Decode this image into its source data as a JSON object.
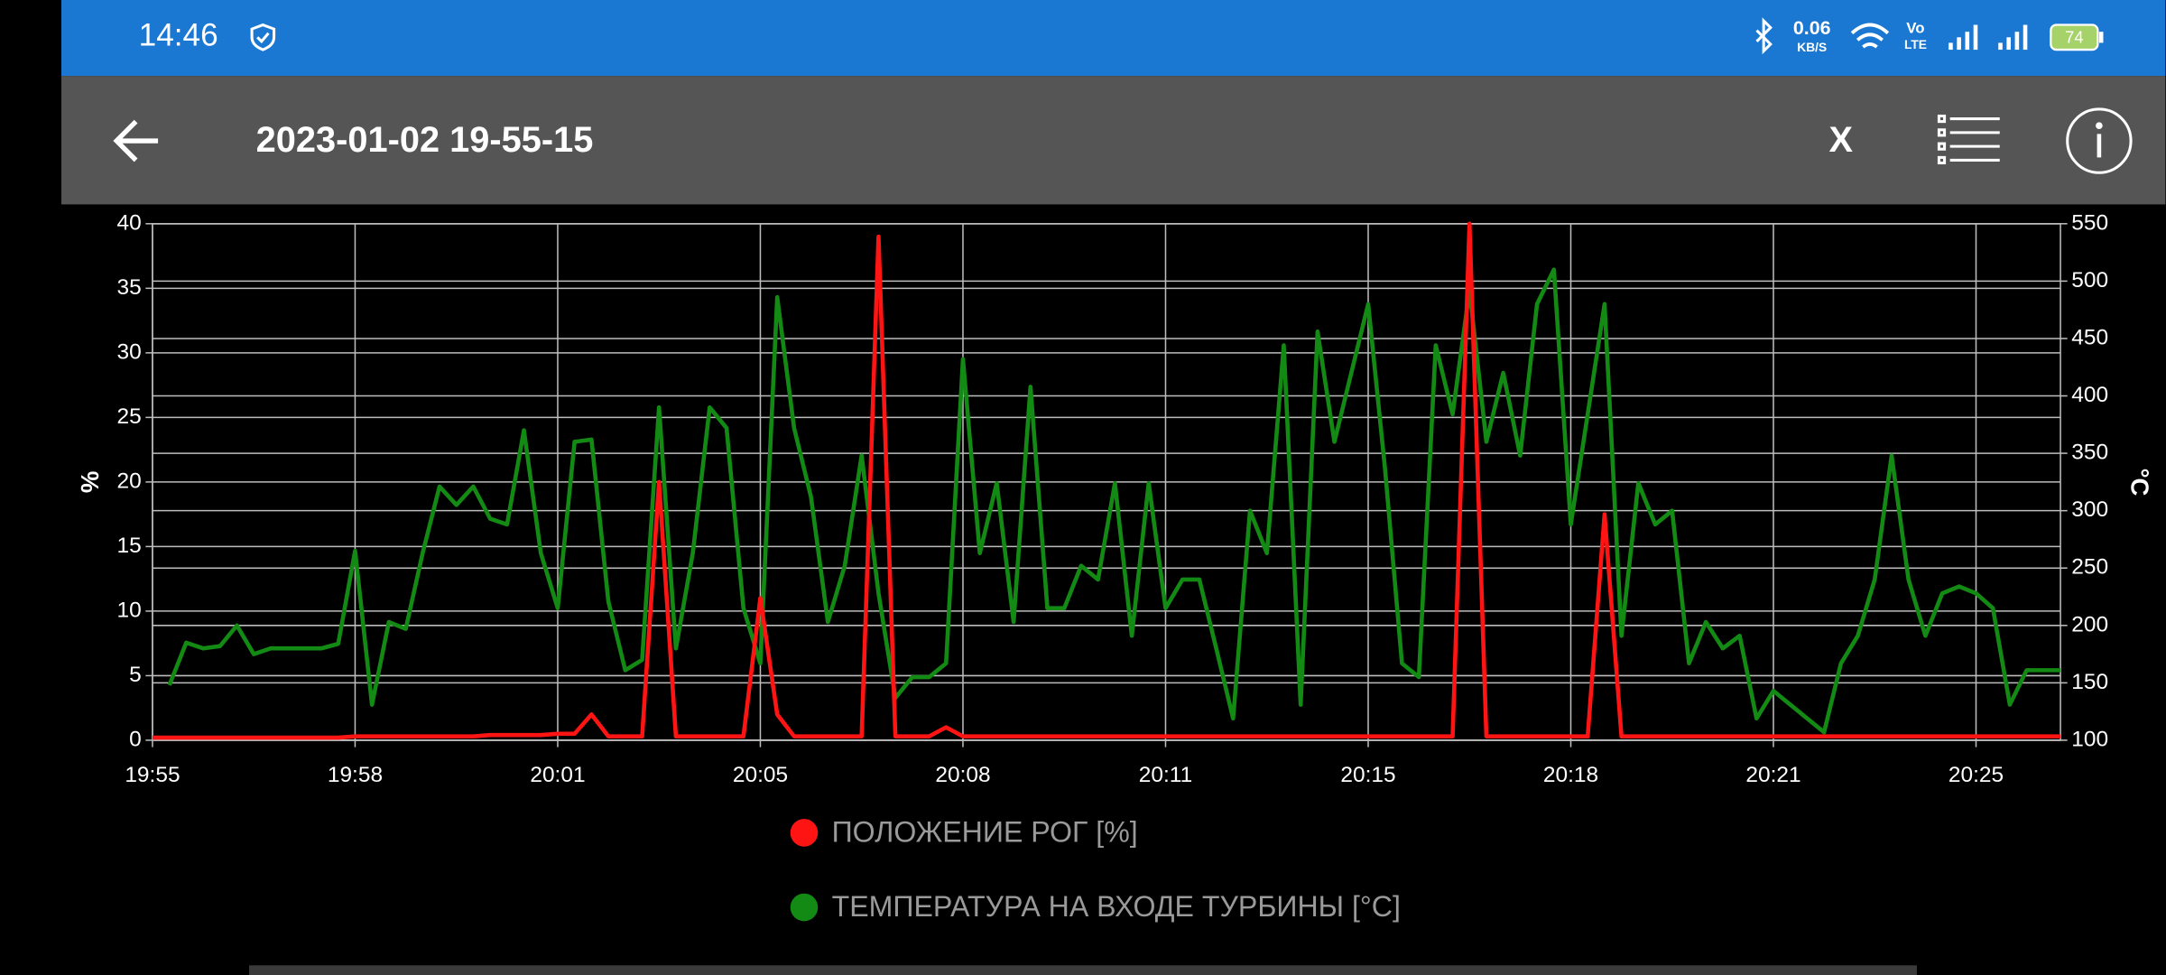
{
  "status_bar": {
    "time": "14:46",
    "net_speed": "0.06",
    "net_unit": "KB/S",
    "volte_top": "Vo",
    "volte_bottom": "LTE",
    "battery": "74"
  },
  "toolbar": {
    "title": "2023-01-02 19-55-15",
    "close": "X"
  },
  "chart_data": {
    "type": "line",
    "ylabel": "%",
    "y2label": "°C",
    "categories": [
      "19:55",
      null,
      null,
      null,
      null,
      null,
      null,
      null,
      null,
      null,
      null,
      null,
      "19:58",
      null,
      null,
      null,
      null,
      null,
      null,
      null,
      null,
      null,
      null,
      null,
      "20:01",
      null,
      null,
      null,
      null,
      null,
      null,
      null,
      null,
      null,
      null,
      null,
      "20:05",
      null,
      null,
      null,
      null,
      null,
      null,
      null,
      null,
      null,
      null,
      null,
      "20:08",
      null,
      null,
      null,
      null,
      null,
      null,
      null,
      null,
      null,
      null,
      null,
      "20:11",
      null,
      null,
      null,
      null,
      null,
      null,
      null,
      null,
      null,
      null,
      null,
      "20:15",
      null,
      null,
      null,
      null,
      null,
      null,
      null,
      null,
      null,
      null,
      null,
      "20:18",
      null,
      null,
      null,
      null,
      null,
      null,
      null,
      null,
      null,
      null,
      null,
      "20:21",
      null,
      null,
      null,
      null,
      null,
      null,
      null,
      null,
      null,
      null,
      null,
      "20:25",
      null,
      null,
      null,
      null,
      null
    ],
    "series": [
      {
        "name": "ПОЛОЖЕНИЕ РОГ [%]",
        "color": "#ff1414",
        "axis": "y",
        "values": [
          0.2,
          0.2,
          0.2,
          0.2,
          0.2,
          0.2,
          0.2,
          0.2,
          0.2,
          0.2,
          0.2,
          0.2,
          0.3,
          0.3,
          0.3,
          0.3,
          0.3,
          0.3,
          0.3,
          0.3,
          0.4,
          0.4,
          0.4,
          0.4,
          0.5,
          0.5,
          2,
          0.3,
          0.3,
          0.3,
          20,
          0.3,
          0.3,
          0.3,
          0.3,
          0.3,
          11,
          2,
          0.3,
          0.3,
          0.3,
          0.3,
          0.3,
          39,
          0.3,
          0.3,
          0.3,
          1,
          0.3,
          0.3,
          0.3,
          0.3,
          0.3,
          0.3,
          0.3,
          0.3,
          0.3,
          0.3,
          0.3,
          0.3,
          0.3,
          0.3,
          0.3,
          0.3,
          0.3,
          0.3,
          0.3,
          0.3,
          0.3,
          0.3,
          0.3,
          0.3,
          0.3,
          0.3,
          0.3,
          0.3,
          0.3,
          0.3,
          40,
          0.3,
          0.3,
          0.3,
          0.3,
          0.3,
          0.3,
          0.3,
          17.5,
          0.3,
          0.3,
          0.3,
          0.3,
          0.3,
          0.3,
          0.3,
          0.3,
          0.3,
          0.3,
          0.3,
          0.3,
          0.3,
          0.3,
          0.3,
          0.3,
          0.3,
          0.3,
          0.3,
          0.3,
          0.3,
          0.3,
          0.3,
          0.3,
          0.3,
          0.3,
          0.3
        ]
      },
      {
        "name": "ТЕМПЕРАТУРА НА ВХОДЕ ТУРБИНЫ [°C]",
        "color": "#138a13",
        "axis": "y2",
        "values": [
          null,
          148,
          185,
          180,
          182,
          200,
          175,
          180,
          180,
          180,
          180,
          184,
          265,
          131,
          203,
          197,
          263,
          321,
          305,
          321,
          293,
          288,
          370,
          263,
          215,
          360,
          362,
          221,
          161,
          170,
          390,
          180,
          263,
          390,
          372,
          215,
          167,
          486,
          372,
          312,
          203,
          252,
          348,
          228,
          137,
          155,
          155,
          167,
          432,
          263,
          324,
          203,
          408,
          215,
          215,
          252,
          240,
          324,
          191,
          324,
          215,
          240,
          240,
          180,
          119,
          300,
          263,
          444,
          131,
          456,
          360,
          420,
          480,
          336,
          167,
          155,
          444,
          384,
          492,
          360,
          420,
          348,
          480,
          510,
          288,
          384,
          480,
          191,
          324,
          288,
          300,
          167,
          203,
          180,
          191,
          119,
          143,
          131,
          119,
          107,
          167,
          191,
          240,
          348,
          240,
          191,
          228,
          234,
          228,
          215,
          131,
          161,
          161,
          161
        ]
      }
    ],
    "ylim": [
      0,
      40
    ],
    "yticks": [
      0,
      5,
      10,
      15,
      20,
      25,
      30,
      35,
      40
    ],
    "y2lim": [
      100,
      550
    ],
    "y2ticks": [
      100,
      150,
      200,
      250,
      300,
      350,
      400,
      450,
      500,
      550
    ],
    "grid": true
  }
}
